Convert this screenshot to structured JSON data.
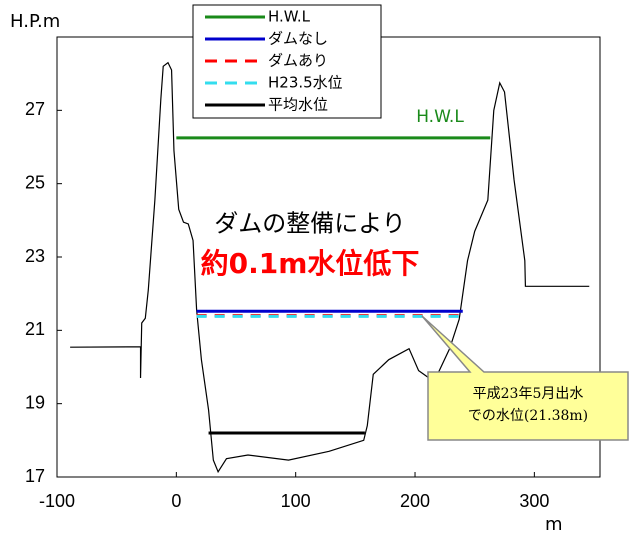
{
  "chart_data": {
    "type": "line",
    "y_label": "H.P.m",
    "x_label": "m",
    "xlim": [
      -100,
      355
    ],
    "ylim": [
      17,
      29
    ],
    "xticks": [
      -100,
      0,
      100,
      200,
      300
    ],
    "yticks": [
      17,
      19,
      21,
      23,
      25,
      27
    ],
    "series": [
      {
        "name": "H.W.L",
        "color": "#1a8a1a",
        "x": [
          0,
          263
        ],
        "values": [
          26.25,
          26.25
        ]
      },
      {
        "name": "ダムなし",
        "color": "#0000cc",
        "x": [
          17,
          240
        ],
        "values": [
          21.52,
          21.52
        ]
      },
      {
        "name": "ダムあり",
        "color": "#ff0000",
        "x": [
          17,
          240
        ],
        "values": [
          21.4,
          21.4
        ],
        "dash": true
      },
      {
        "name": "H23.5水位",
        "color": "#33ddee",
        "x": [
          17,
          240
        ],
        "values": [
          21.38,
          21.38
        ],
        "dash": true
      },
      {
        "name": "平均水位",
        "color": "#000000",
        "x": [
          27,
          158
        ],
        "values": [
          18.2,
          18.2
        ]
      }
    ],
    "terrain": {
      "color": "#000000",
      "x": [
        -89,
        -30,
        -30,
        -29,
        -26,
        -23.5,
        -18,
        -13,
        -11,
        -7,
        -4,
        -2,
        2,
        6,
        10,
        14,
        17,
        21,
        27,
        31,
        35,
        42,
        60,
        94,
        128,
        157,
        160,
        165,
        178,
        195,
        203,
        216,
        229,
        237,
        244,
        250,
        261,
        266,
        271,
        275,
        283,
        292,
        292.5,
        346
      ],
      "values": [
        20.54,
        20.55,
        19.7,
        21.2,
        21.33,
        22.1,
        24.55,
        27.3,
        28.2,
        28.3,
        28.1,
        25.9,
        24.3,
        23.95,
        23.9,
        23.45,
        21.55,
        20.2,
        18.83,
        17.46,
        17.14,
        17.5,
        17.6,
        17.46,
        17.7,
        18.0,
        18.4,
        19.8,
        20.2,
        20.5,
        19.9,
        19.6,
        20.5,
        21.3,
        22.9,
        23.7,
        24.55,
        27.0,
        27.75,
        27.5,
        25.1,
        22.9,
        22.2,
        22.2
      ]
    },
    "annotations": [
      {
        "text": "H.W.L",
        "color": "#1a8a1a"
      },
      {
        "text": "ダムの整備により",
        "color": "#000000"
      },
      {
        "text": "約0.1m水位低下",
        "color": "#ff0000"
      }
    ],
    "callout": [
      "平成23年5月出水",
      "での水位(21.38m)"
    ]
  }
}
